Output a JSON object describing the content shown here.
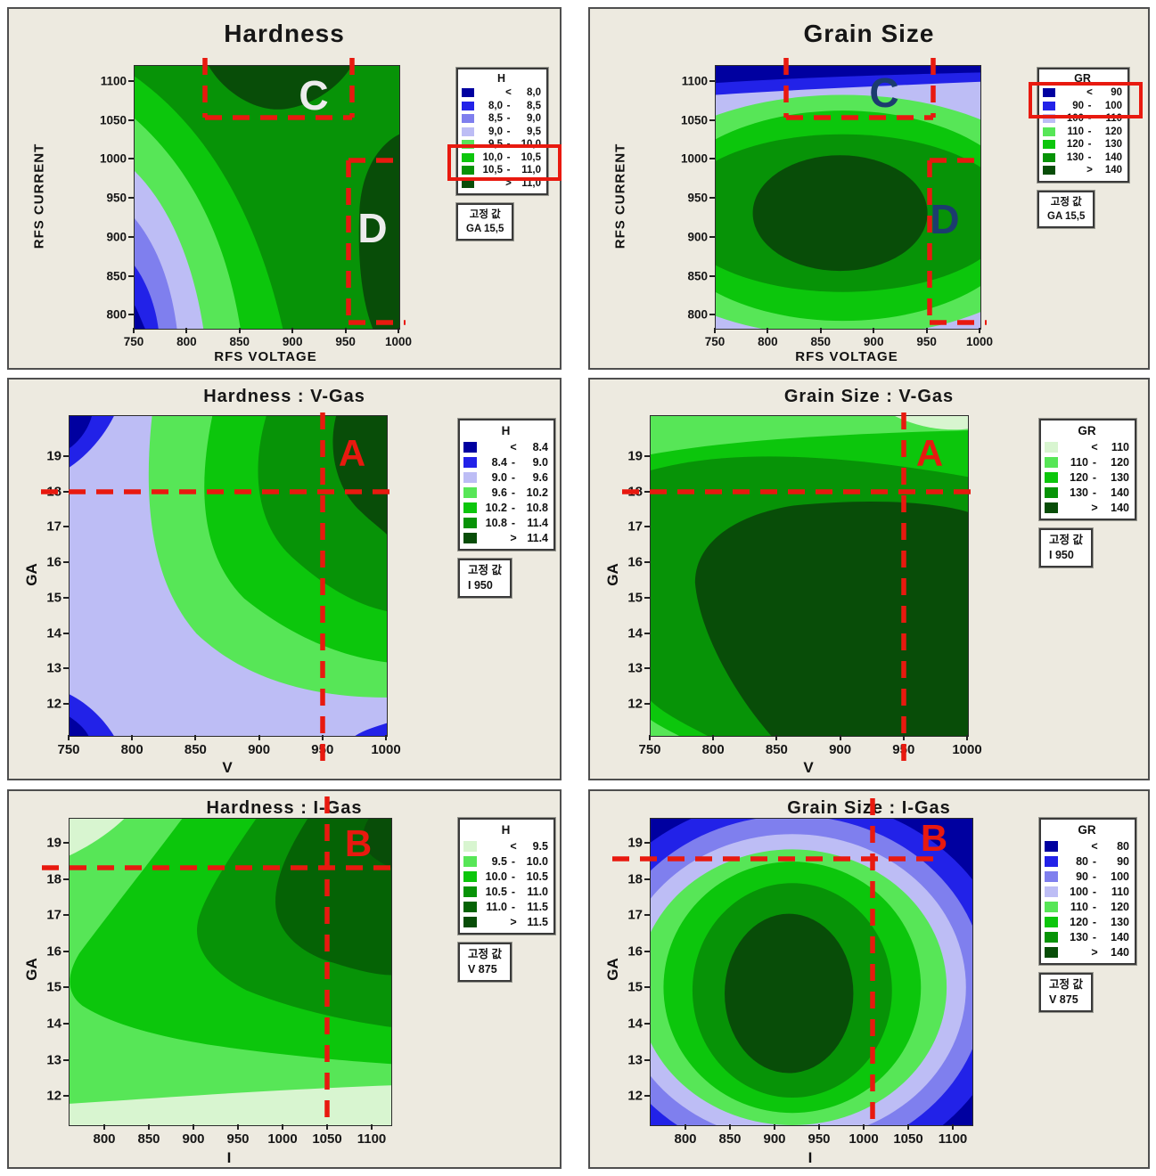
{
  "theme": {
    "anno": "#E8190F",
    "panel-bg": "#EDEAE0",
    "panel-border": "#4F4F4F",
    "box-border": "#3A3A3A"
  },
  "chart_data": {
    "type": "contour-grid",
    "palette": {
      "navy": "#0000A0",
      "blue": "#2222E8",
      "periwinkle": "#7F7FEE",
      "lavender": "#BDBDF5",
      "g0": "#D8F5D0",
      "g1": "#57E657",
      "g2": "#0CC60C",
      "g3": "#079307",
      "g4": "#056305",
      "g5": "#084D08"
    },
    "panels": [
      {
        "key": "hardness-main",
        "type": "contour",
        "title": "Hardness",
        "xlabel": "RFS VOLTAGE",
        "ylabel": "RFS CURRENT",
        "xticks": [
          "750",
          "800",
          "850",
          "900",
          "950",
          "1000"
        ],
        "yticks": [
          "1100",
          "1050",
          "1000",
          "950",
          "900",
          "850",
          "800"
        ],
        "legend": {
          "title": "H",
          "entries": [
            {
              "lo": "",
              "sep": "<",
              "hi": "8,0",
              "color": "navy"
            },
            {
              "lo": "8,0",
              "sep": "-",
              "hi": "8,5",
              "color": "blue"
            },
            {
              "lo": "8,5",
              "sep": "-",
              "hi": "9,0",
              "color": "periwinkle"
            },
            {
              "lo": "9,0",
              "sep": "-",
              "hi": "9,5",
              "color": "lavender"
            },
            {
              "lo": "9,5",
              "sep": "-",
              "hi": "10,0",
              "color": "g1"
            },
            {
              "lo": "10,0",
              "sep": "-",
              "hi": "10,5",
              "color": "g2"
            },
            {
              "lo": "10,5",
              "sep": "-",
              "hi": "11,0",
              "color": "g3"
            },
            {
              "lo": "",
              "sep": ">",
              "hi": "11,0",
              "color": "g5"
            }
          ],
          "highlighted_entries": [
            "10,0 - 10,5",
            "10,5 - 11,0"
          ]
        },
        "fixed": {
          "label": "고정 값",
          "value": "GA  15,5"
        },
        "letters": [
          {
            "text": "C",
            "color": "#ECECEC"
          },
          {
            "text": "D",
            "color": "#ECECEC"
          }
        ]
      },
      {
        "key": "grainsize-main",
        "type": "contour",
        "title": "Grain Size",
        "xlabel": "RFS VOLTAGE",
        "ylabel": "RFS CURRENT",
        "xticks": [
          "750",
          "800",
          "850",
          "900",
          "950",
          "1000"
        ],
        "yticks": [
          "1100",
          "1050",
          "1000",
          "950",
          "900",
          "850",
          "800"
        ],
        "legend": {
          "title": "GR",
          "entries": [
            {
              "lo": "",
              "sep": "<",
              "hi": "90",
              "color": "navy"
            },
            {
              "lo": "90",
              "sep": "-",
              "hi": "100",
              "color": "blue"
            },
            {
              "lo": "100",
              "sep": "-",
              "hi": "110",
              "color": "lavender"
            },
            {
              "lo": "110",
              "sep": "-",
              "hi": "120",
              "color": "g1"
            },
            {
              "lo": "120",
              "sep": "-",
              "hi": "130",
              "color": "g2"
            },
            {
              "lo": "130",
              "sep": "-",
              "hi": "140",
              "color": "g3"
            },
            {
              "lo": "",
              "sep": ">",
              "hi": "140",
              "color": "g5"
            }
          ],
          "highlighted_entries": [
            "< 90",
            "90 - 100"
          ]
        },
        "fixed": {
          "label": "고정 값",
          "value": "GA  15,5"
        },
        "letters": [
          {
            "text": "C",
            "color": "#1C3C6E"
          },
          {
            "text": "D",
            "color": "#1C3C6E"
          }
        ]
      },
      {
        "key": "hardness-vgas",
        "type": "contour",
        "title": "Hardness : V-Gas",
        "xlabel": "V",
        "ylabel": "GA",
        "xticks": [
          "750",
          "800",
          "850",
          "900",
          "950",
          "1000"
        ],
        "yticks": [
          "19",
          "18",
          "17",
          "16",
          "15",
          "14",
          "13",
          "12"
        ],
        "legend": {
          "title": "H",
          "entries": [
            {
              "lo": "",
              "sep": "<",
              "hi": "8.4",
              "color": "navy"
            },
            {
              "lo": "8.4",
              "sep": "-",
              "hi": "9.0",
              "color": "blue"
            },
            {
              "lo": "9.0",
              "sep": "-",
              "hi": "9.6",
              "color": "lavender"
            },
            {
              "lo": "9.6",
              "sep": "-",
              "hi": "10.2",
              "color": "g1"
            },
            {
              "lo": "10.2",
              "sep": "-",
              "hi": "10.8",
              "color": "g2"
            },
            {
              "lo": "10.8",
              "sep": "-",
              "hi": "11.4",
              "color": "g3"
            },
            {
              "lo": "",
              "sep": ">",
              "hi": "11.4",
              "color": "g5"
            }
          ]
        },
        "fixed": {
          "label": "고정 값",
          "value": "I  950"
        },
        "letters": [
          {
            "text": "A",
            "color": "#E8190F"
          }
        ]
      },
      {
        "key": "grainsize-vgas",
        "type": "contour",
        "title": "Grain Size : V-Gas",
        "xlabel": "V",
        "ylabel": "GA",
        "xticks": [
          "750",
          "800",
          "850",
          "900",
          "950",
          "1000"
        ],
        "yticks": [
          "19",
          "18",
          "17",
          "16",
          "15",
          "14",
          "13",
          "12"
        ],
        "legend": {
          "title": "GR",
          "entries": [
            {
              "lo": "",
              "sep": "<",
              "hi": "110",
              "color": "g0"
            },
            {
              "lo": "110",
              "sep": "-",
              "hi": "120",
              "color": "g1"
            },
            {
              "lo": "120",
              "sep": "-",
              "hi": "130",
              "color": "g2"
            },
            {
              "lo": "130",
              "sep": "-",
              "hi": "140",
              "color": "g3"
            },
            {
              "lo": "",
              "sep": ">",
              "hi": "140",
              "color": "g5"
            }
          ]
        },
        "fixed": {
          "label": "고정 값",
          "value": "I  950"
        },
        "letters": [
          {
            "text": "A",
            "color": "#E8190F"
          }
        ]
      },
      {
        "key": "hardness-igas",
        "type": "contour",
        "title": "Hardness : I-Gas",
        "xlabel": "I",
        "ylabel": "GA",
        "xticks": [
          "800",
          "850",
          "900",
          "950",
          "1000",
          "1050",
          "1100"
        ],
        "yticks": [
          "19",
          "18",
          "17",
          "16",
          "15",
          "14",
          "13",
          "12"
        ],
        "legend": {
          "title": "H",
          "entries": [
            {
              "lo": "",
              "sep": "<",
              "hi": "9.5",
              "color": "g0"
            },
            {
              "lo": "9.5",
              "sep": "-",
              "hi": "10.0",
              "color": "g1"
            },
            {
              "lo": "10.0",
              "sep": "-",
              "hi": "10.5",
              "color": "g2"
            },
            {
              "lo": "10.5",
              "sep": "-",
              "hi": "11.0",
              "color": "g3"
            },
            {
              "lo": "11.0",
              "sep": "-",
              "hi": "11.5",
              "color": "g4"
            },
            {
              "lo": "",
              "sep": ">",
              "hi": "11.5",
              "color": "g5"
            }
          ]
        },
        "fixed": {
          "label": "고정 값",
          "value": "V  875"
        },
        "letters": [
          {
            "text": "B",
            "color": "#E8190F"
          }
        ]
      },
      {
        "key": "grainsize-igas",
        "type": "contour",
        "title": "Grain Size : I-Gas",
        "xlabel": "I",
        "ylabel": "GA",
        "xticks": [
          "800",
          "850",
          "900",
          "950",
          "1000",
          "1050",
          "1100"
        ],
        "yticks": [
          "19",
          "18",
          "17",
          "16",
          "15",
          "14",
          "13",
          "12"
        ],
        "legend": {
          "title": "GR",
          "entries": [
            {
              "lo": "",
              "sep": "<",
              "hi": "80",
              "color": "navy"
            },
            {
              "lo": "80",
              "sep": "-",
              "hi": "90",
              "color": "blue"
            },
            {
              "lo": "90",
              "sep": "-",
              "hi": "100",
              "color": "periwinkle"
            },
            {
              "lo": "100",
              "sep": "-",
              "hi": "110",
              "color": "lavender"
            },
            {
              "lo": "110",
              "sep": "-",
              "hi": "120",
              "color": "g1"
            },
            {
              "lo": "120",
              "sep": "-",
              "hi": "130",
              "color": "g2"
            },
            {
              "lo": "130",
              "sep": "-",
              "hi": "140",
              "color": "g3"
            },
            {
              "lo": "",
              "sep": ">",
              "hi": "140",
              "color": "g5"
            }
          ]
        },
        "fixed": {
          "label": "고정 값",
          "value": "V  875"
        },
        "letters": [
          {
            "text": "B",
            "color": "#E8190F"
          }
        ]
      }
    ]
  }
}
